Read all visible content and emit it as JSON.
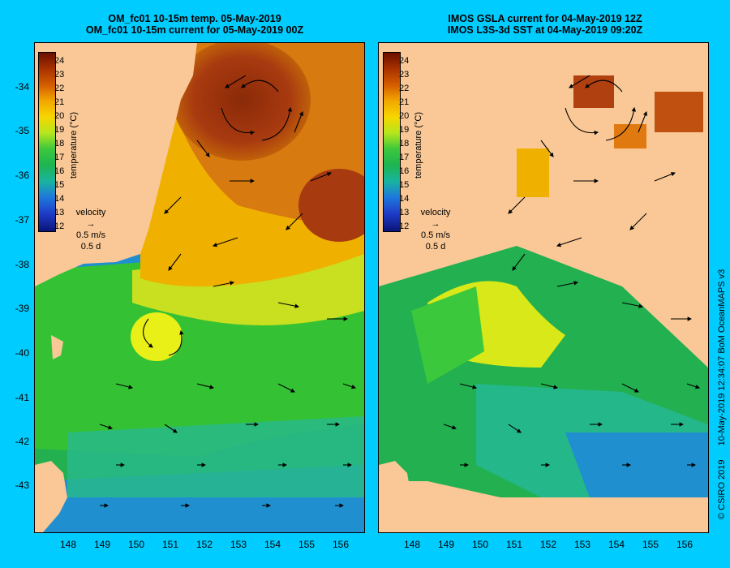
{
  "left_panel": {
    "title_line1": "OM_fc01 10-15m temp. 05-May-2019",
    "title_line2": "OM_fc01 10-15m current for 05-May-2019 00Z"
  },
  "right_panel": {
    "title_line1": "IMOS GSLA current for 04-May-2019 12Z",
    "title_line2": "IMOS L3S-3d SST at 04-May-2019 09:20Z"
  },
  "colorbar": {
    "title": "temperature (°C)",
    "ticks": [
      "24",
      "23",
      "22",
      "21",
      "20",
      "19",
      "18",
      "17",
      "16",
      "15",
      "14",
      "13",
      "12"
    ]
  },
  "velocity_legend": {
    "label": "velocity",
    "speed": "0.5 m/s",
    "time": "0.5 d"
  },
  "lat_ticks": [
    "-34",
    "-35",
    "-36",
    "-37",
    "-38",
    "-39",
    "-40",
    "-41",
    "-42",
    "-43"
  ],
  "lon_ticks": [
    "148",
    "149",
    "150",
    "151",
    "152",
    "153",
    "154",
    "155",
    "156"
  ],
  "credit": {
    "copyright": "© CSIRO 2019",
    "timestamp": "10-May-2019 12:34:07 BoM OceanMAPS v3"
  },
  "colors": {
    "background": "#00ccff",
    "land": "#f9c896",
    "warm": "#c0500a",
    "mid": "#f0b000",
    "cool": "#22b050",
    "cold": "#1e8ad0"
  }
}
